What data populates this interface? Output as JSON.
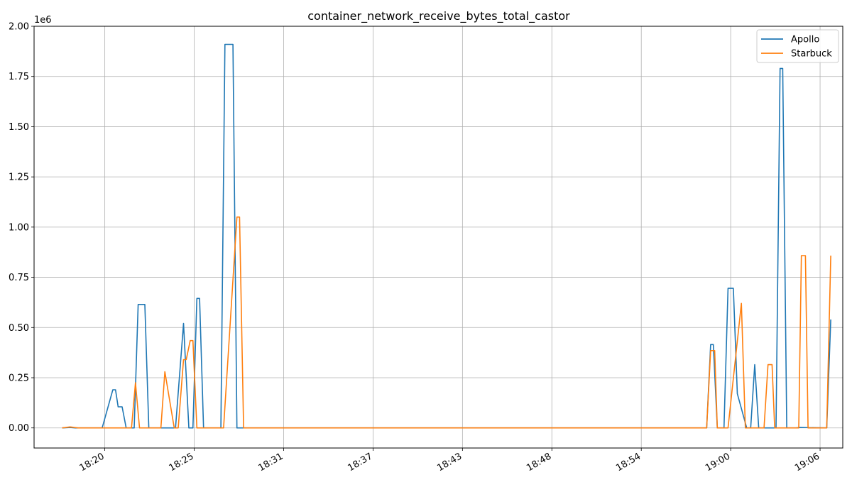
{
  "chart_data": {
    "type": "line",
    "title": "container_network_receive_bytes_total_castor",
    "xlabel": "",
    "ylabel": "",
    "y_offset_label": "1e6",
    "x_axis_type": "time",
    "xlim": [
      "18:16:15",
      "19:06:45"
    ],
    "ylim": [
      -0.1,
      2.0
    ],
    "y_ticks": [
      0.0,
      0.25,
      0.5,
      0.75,
      1.0,
      1.25,
      1.5,
      1.75,
      2.0
    ],
    "y_tick_labels": [
      "0.00",
      "0.25",
      "0.50",
      "0.75",
      "1.00",
      "1.25",
      "1.50",
      "1.75",
      "2.00"
    ],
    "x_ticks": [
      "18:20:40",
      "18:26:15",
      "18:31:50",
      "18:37:25",
      "18:43:00",
      "18:48:35",
      "18:54:10",
      "18:59:45",
      "19:05:20"
    ],
    "x_tick_labels": [
      "18:20",
      "18:25",
      "18:31",
      "18:37",
      "18:43",
      "18:48",
      "18:54",
      "19:00",
      "19:06"
    ],
    "grid": true,
    "legend_position": "top-right",
    "series": [
      {
        "name": "Apollo",
        "color": "#1f77b4",
        "points": [
          [
            "18:18:00",
            0.0
          ],
          [
            "18:18:30",
            0.002
          ],
          [
            "18:18:50",
            0.0
          ],
          [
            "18:20:30",
            0.0
          ],
          [
            "18:21:10",
            0.19
          ],
          [
            "18:21:20",
            0.19
          ],
          [
            "18:21:30",
            0.105
          ],
          [
            "18:21:45",
            0.105
          ],
          [
            "18:22:00",
            0.0
          ],
          [
            "18:22:30",
            0.0
          ],
          [
            "18:22:45",
            0.615
          ],
          [
            "18:23:10",
            0.615
          ],
          [
            "18:23:25",
            0.0
          ],
          [
            "18:24:00",
            0.0
          ],
          [
            "18:25:05",
            0.0
          ],
          [
            "18:25:35",
            0.52
          ],
          [
            "18:25:55",
            0.0
          ],
          [
            "18:26:10",
            0.0
          ],
          [
            "18:26:25",
            0.645
          ],
          [
            "18:26:35",
            0.645
          ],
          [
            "18:26:50",
            0.0
          ],
          [
            "18:27:55",
            0.0
          ],
          [
            "18:28:10",
            1.91
          ],
          [
            "18:28:40",
            1.91
          ],
          [
            "18:28:55",
            0.0
          ],
          [
            "18:58:15",
            0.0
          ],
          [
            "18:58:30",
            0.415
          ],
          [
            "18:58:40",
            0.415
          ],
          [
            "18:58:55",
            0.0
          ],
          [
            "18:59:20",
            0.0
          ],
          [
            "18:59:35",
            0.695
          ],
          [
            "18:59:55",
            0.695
          ],
          [
            "19:00:10",
            0.17
          ],
          [
            "19:00:45",
            0.0
          ],
          [
            "19:01:00",
            0.0
          ],
          [
            "19:01:15",
            0.315
          ],
          [
            "19:01:30",
            0.0
          ],
          [
            "19:02:35",
            0.0
          ],
          [
            "19:02:50",
            1.79
          ],
          [
            "19:03:00",
            1.79
          ],
          [
            "19:03:15",
            0.0
          ],
          [
            "19:03:50",
            0.0
          ],
          [
            "19:04:05",
            0.002
          ],
          [
            "19:05:45",
            0.0
          ],
          [
            "19:06:00",
            0.54
          ]
        ]
      },
      {
        "name": "Starbuck",
        "color": "#ff7f0e",
        "points": [
          [
            "18:18:00",
            0.0
          ],
          [
            "18:18:30",
            0.005
          ],
          [
            "18:19:00",
            0.0
          ],
          [
            "18:22:20",
            0.0
          ],
          [
            "18:22:35",
            0.225
          ],
          [
            "18:22:50",
            0.0
          ],
          [
            "18:24:10",
            0.0
          ],
          [
            "18:24:25",
            0.28
          ],
          [
            "18:25:00",
            0.0
          ],
          [
            "18:25:15",
            0.0
          ],
          [
            "18:25:35",
            0.34
          ],
          [
            "18:25:45",
            0.34
          ],
          [
            "18:26:00",
            0.435
          ],
          [
            "18:26:10",
            0.435
          ],
          [
            "18:26:25",
            0.0
          ],
          [
            "18:28:05",
            0.0
          ],
          [
            "18:28:55",
            1.05
          ],
          [
            "18:29:05",
            1.05
          ],
          [
            "18:29:20",
            0.0
          ],
          [
            "18:58:15",
            0.0
          ],
          [
            "18:58:30",
            0.385
          ],
          [
            "18:58:45",
            0.385
          ],
          [
            "18:58:55",
            0.0
          ],
          [
            "18:59:35",
            0.0
          ],
          [
            "19:00:25",
            0.62
          ],
          [
            "19:00:40",
            0.0
          ],
          [
            "19:01:50",
            0.0
          ],
          [
            "19:02:05",
            0.315
          ],
          [
            "19:02:20",
            0.315
          ],
          [
            "19:02:30",
            0.0
          ],
          [
            "19:04:00",
            0.0
          ],
          [
            "19:04:10",
            0.858
          ],
          [
            "19:04:25",
            0.858
          ],
          [
            "19:04:35",
            0.0
          ],
          [
            "19:05:45",
            0.0
          ],
          [
            "19:06:00",
            0.858
          ]
        ]
      }
    ]
  }
}
